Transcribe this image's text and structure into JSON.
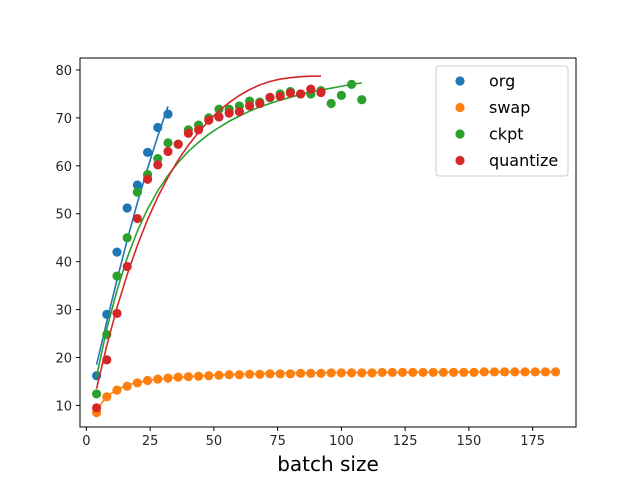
{
  "chart_data": {
    "type": "scatter",
    "title": "",
    "xlabel": "batch size",
    "ylabel": "",
    "xlim": [
      -2.5,
      192
    ],
    "ylim": [
      5.5,
      82.5
    ],
    "xticks": [
      0,
      25,
      50,
      75,
      100,
      125,
      150,
      175
    ],
    "yticks": [
      10,
      20,
      30,
      40,
      50,
      60,
      70,
      80
    ],
    "grid": false,
    "legend_position": "top-right",
    "colors": {
      "org": "#1f77b4",
      "swap": "#ff7f0e",
      "ckpt": "#2ca02c",
      "quantize": "#d62728",
      "axis": "#000000"
    },
    "series": [
      {
        "name": "org",
        "points": [
          [
            4,
            16.2
          ],
          [
            8,
            29.0
          ],
          [
            12,
            42.0
          ],
          [
            16,
            51.2
          ],
          [
            20,
            56.0
          ],
          [
            24,
            62.8
          ],
          [
            28,
            68.0
          ],
          [
            32,
            70.8
          ]
        ],
        "fit": [
          [
            4,
            18.5
          ],
          [
            8,
            27.5
          ],
          [
            12,
            36.2
          ],
          [
            16,
            44.5
          ],
          [
            20,
            52.3
          ],
          [
            24,
            59.5
          ],
          [
            28,
            66.2
          ],
          [
            32,
            72.4
          ]
        ]
      },
      {
        "name": "swap",
        "points": [
          [
            4,
            8.5
          ],
          [
            8,
            11.8
          ],
          [
            12,
            13.2
          ],
          [
            16,
            14.0
          ],
          [
            20,
            14.7
          ],
          [
            24,
            15.2
          ],
          [
            28,
            15.5
          ],
          [
            32,
            15.7
          ],
          [
            36,
            15.9
          ],
          [
            40,
            16.0
          ],
          [
            44,
            16.1
          ],
          [
            48,
            16.2
          ],
          [
            52,
            16.3
          ],
          [
            56,
            16.4
          ],
          [
            60,
            16.4
          ],
          [
            64,
            16.5
          ],
          [
            68,
            16.5
          ],
          [
            72,
            16.6
          ],
          [
            76,
            16.6
          ],
          [
            80,
            16.6
          ],
          [
            84,
            16.7
          ],
          [
            88,
            16.7
          ],
          [
            92,
            16.7
          ],
          [
            96,
            16.8
          ],
          [
            100,
            16.8
          ],
          [
            104,
            16.8
          ],
          [
            108,
            16.8
          ],
          [
            112,
            16.8
          ],
          [
            116,
            16.9
          ],
          [
            120,
            16.9
          ],
          [
            124,
            16.9
          ],
          [
            128,
            16.9
          ],
          [
            132,
            16.9
          ],
          [
            136,
            16.9
          ],
          [
            140,
            16.9
          ],
          [
            144,
            16.9
          ],
          [
            148,
            16.9
          ],
          [
            152,
            16.9
          ],
          [
            156,
            17.0
          ],
          [
            160,
            17.0
          ],
          [
            164,
            17.0
          ],
          [
            168,
            17.0
          ],
          [
            172,
            17.0
          ],
          [
            176,
            17.0
          ],
          [
            180,
            17.0
          ],
          [
            184,
            17.0
          ]
        ],
        "fit": [
          [
            4,
            9.0
          ],
          [
            8,
            11.9
          ],
          [
            12,
            13.3
          ],
          [
            16,
            14.2
          ],
          [
            20,
            14.8
          ],
          [
            24,
            15.2
          ],
          [
            28,
            15.5
          ],
          [
            32,
            15.7
          ],
          [
            40,
            16.0
          ],
          [
            50,
            16.3
          ],
          [
            60,
            16.5
          ],
          [
            75,
            16.7
          ],
          [
            100,
            16.85
          ],
          [
            125,
            16.92
          ],
          [
            150,
            16.96
          ],
          [
            184,
            17.0
          ]
        ]
      },
      {
        "name": "ckpt",
        "points": [
          [
            4,
            12.4
          ],
          [
            8,
            24.8
          ],
          [
            12,
            37.0
          ],
          [
            16,
            45.0
          ],
          [
            20,
            54.5
          ],
          [
            24,
            58.2
          ],
          [
            28,
            61.5
          ],
          [
            32,
            64.8
          ],
          [
            36,
            64.5
          ],
          [
            40,
            67.5
          ],
          [
            44,
            68.5
          ],
          [
            48,
            70.0
          ],
          [
            52,
            71.8
          ],
          [
            56,
            71.8
          ],
          [
            60,
            72.5
          ],
          [
            64,
            73.5
          ],
          [
            68,
            73.3
          ],
          [
            72,
            74.2
          ],
          [
            76,
            75.0
          ],
          [
            80,
            75.5
          ],
          [
            84,
            75.0
          ],
          [
            88,
            75.0
          ],
          [
            92,
            75.7
          ],
          [
            96,
            73.0
          ],
          [
            100,
            74.7
          ],
          [
            104,
            77.0
          ],
          [
            108,
            73.8
          ]
        ],
        "fit": [
          [
            4,
            16.0
          ],
          [
            8,
            26.0
          ],
          [
            12,
            34.0
          ],
          [
            16,
            40.8
          ],
          [
            20,
            46.4
          ],
          [
            24,
            51.0
          ],
          [
            28,
            54.8
          ],
          [
            32,
            58.0
          ],
          [
            36,
            60.7
          ],
          [
            40,
            63.0
          ],
          [
            44,
            64.9
          ],
          [
            48,
            66.6
          ],
          [
            52,
            68.0
          ],
          [
            56,
            69.3
          ],
          [
            60,
            70.4
          ],
          [
            64,
            71.4
          ],
          [
            68,
            72.3
          ],
          [
            72,
            73.0
          ],
          [
            76,
            73.7
          ],
          [
            80,
            74.3
          ],
          [
            84,
            74.9
          ],
          [
            88,
            75.4
          ],
          [
            92,
            75.8
          ],
          [
            96,
            76.2
          ],
          [
            100,
            76.6
          ],
          [
            104,
            77.0
          ],
          [
            108,
            77.3
          ]
        ]
      },
      {
        "name": "quantize",
        "points": [
          [
            4,
            9.5
          ],
          [
            8,
            19.5
          ],
          [
            12,
            29.2
          ],
          [
            16,
            39.0
          ],
          [
            20,
            49.0
          ],
          [
            24,
            57.2
          ],
          [
            28,
            60.2
          ],
          [
            32,
            63.0
          ],
          [
            36,
            64.5
          ],
          [
            40,
            66.8
          ],
          [
            44,
            67.5
          ],
          [
            48,
            69.5
          ],
          [
            52,
            70.2
          ],
          [
            56,
            71.0
          ],
          [
            60,
            71.3
          ],
          [
            64,
            72.5
          ],
          [
            68,
            73.0
          ],
          [
            72,
            74.3
          ],
          [
            76,
            74.5
          ],
          [
            80,
            75.2
          ],
          [
            84,
            75.0
          ],
          [
            88,
            76.0
          ],
          [
            92,
            75.3
          ]
        ],
        "fit": [
          [
            4,
            13.5
          ],
          [
            8,
            22.5
          ],
          [
            12,
            30.4
          ],
          [
            16,
            37.3
          ],
          [
            20,
            43.4
          ],
          [
            24,
            48.8
          ],
          [
            28,
            53.5
          ],
          [
            32,
            57.6
          ],
          [
            36,
            61.2
          ],
          [
            40,
            64.3
          ],
          [
            44,
            67.0
          ],
          [
            48,
            69.4
          ],
          [
            52,
            71.5
          ],
          [
            56,
            73.2
          ],
          [
            60,
            74.7
          ],
          [
            64,
            75.9
          ],
          [
            68,
            76.9
          ],
          [
            72,
            77.6
          ],
          [
            76,
            78.1
          ],
          [
            80,
            78.4
          ],
          [
            84,
            78.6
          ],
          [
            88,
            78.7
          ],
          [
            92,
            78.7
          ]
        ]
      }
    ]
  }
}
